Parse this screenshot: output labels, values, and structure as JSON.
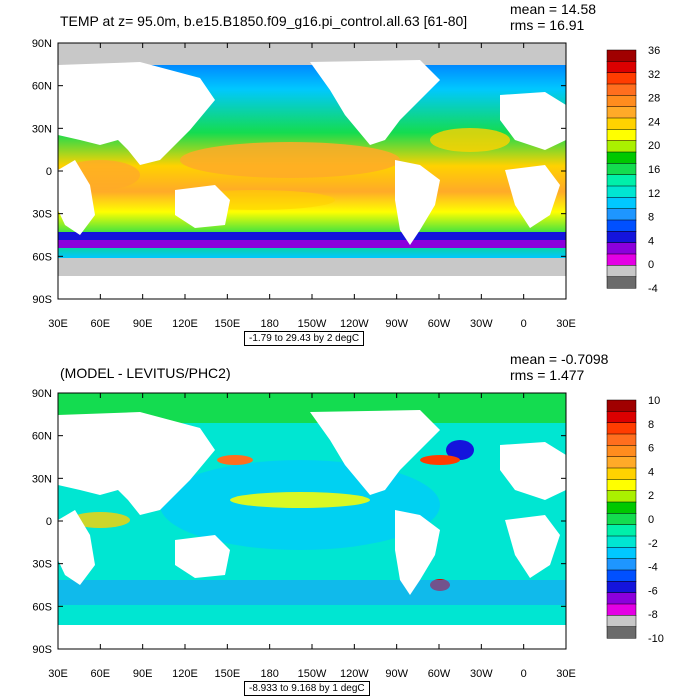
{
  "panels": [
    {
      "title": "TEMP at z=  95.0m, b.e15.B1850.f09_g16.pi_control.all.63 [61-80]",
      "mean_text": "mean = 14.58",
      "rms_text": "rms = 16.91",
      "range_text": "-1.79 to 29.43 by 2 degC",
      "colorbar_labels": [
        "36",
        "32",
        "28",
        "24",
        "20",
        "16",
        "12",
        "8",
        "4",
        "0",
        "-4"
      ]
    },
    {
      "title": "(MODEL - LEVITUS/PHC2)",
      "mean_text": "mean = -0.7098",
      "rms_text": "rms = 1.477",
      "range_text": "-8.933 to 9.168 by 1 degC",
      "colorbar_labels": [
        "10",
        "8",
        "6",
        "4",
        "2",
        "0",
        "-2",
        "-4",
        "-6",
        "-8",
        "-10"
      ]
    }
  ],
  "lon_labels": [
    "30E",
    "60E",
    "90E",
    "120E",
    "150E",
    "180",
    "150W",
    "120W",
    "90W",
    "60W",
    "30W",
    "0",
    "30E"
  ],
  "lat_labels": [
    "90N",
    "60N",
    "30N",
    "0",
    "30S",
    "60S",
    "90S"
  ],
  "colors": {
    "land": "#ffffff",
    "missing": "#c8c8c8",
    "palette": [
      "#6b6b6b",
      "#c8c8c8",
      "#e400e4",
      "#8c00dc",
      "#1414dc",
      "#0050ff",
      "#1e96ff",
      "#00c8ff",
      "#00e6d2",
      "#00f0aa",
      "#14dc50",
      "#00c800",
      "#aaf000",
      "#ffff00",
      "#ffd200",
      "#ffaa28",
      "#ff8c1e",
      "#ff6e1e",
      "#ff3c00",
      "#dc0000",
      "#a00000"
    ]
  }
}
